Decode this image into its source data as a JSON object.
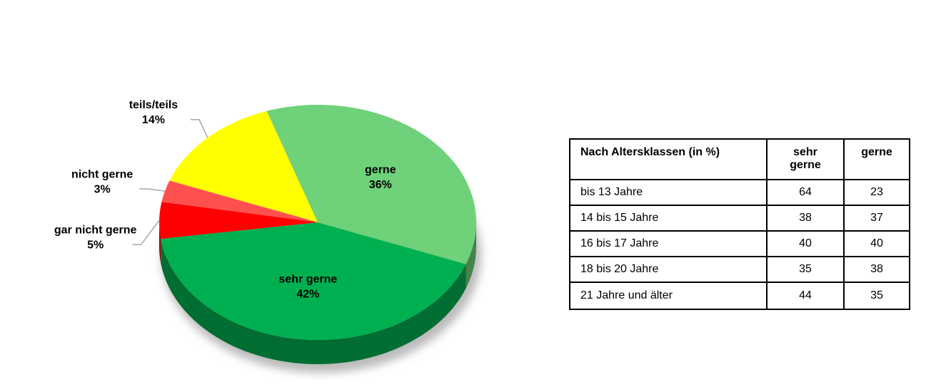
{
  "chart_data": {
    "type": "pie",
    "categories": [
      "sehr gerne",
      "gerne",
      "teils/teils",
      "nicht gerne",
      "gar nicht gerne"
    ],
    "values": [
      42,
      36,
      14,
      3,
      5
    ],
    "value_labels": [
      "42%",
      "36%",
      "14%",
      "3%",
      "5%"
    ],
    "colors": [
      "#00b050",
      "#6fd17a",
      "#ffff00",
      "#ff5050",
      "#ff0000"
    ]
  },
  "table": {
    "header": [
      "Nach Altersklassen (in %)",
      "sehr gerne",
      "gerne"
    ],
    "rows": [
      [
        "bis 13 Jahre",
        64,
        23
      ],
      [
        "14 bis 15 Jahre",
        38,
        37
      ],
      [
        "16 bis 17 Jahre",
        40,
        40
      ],
      [
        "18 bis 20 Jahre",
        35,
        38
      ],
      [
        "21 Jahre und älter",
        44,
        35
      ]
    ]
  }
}
